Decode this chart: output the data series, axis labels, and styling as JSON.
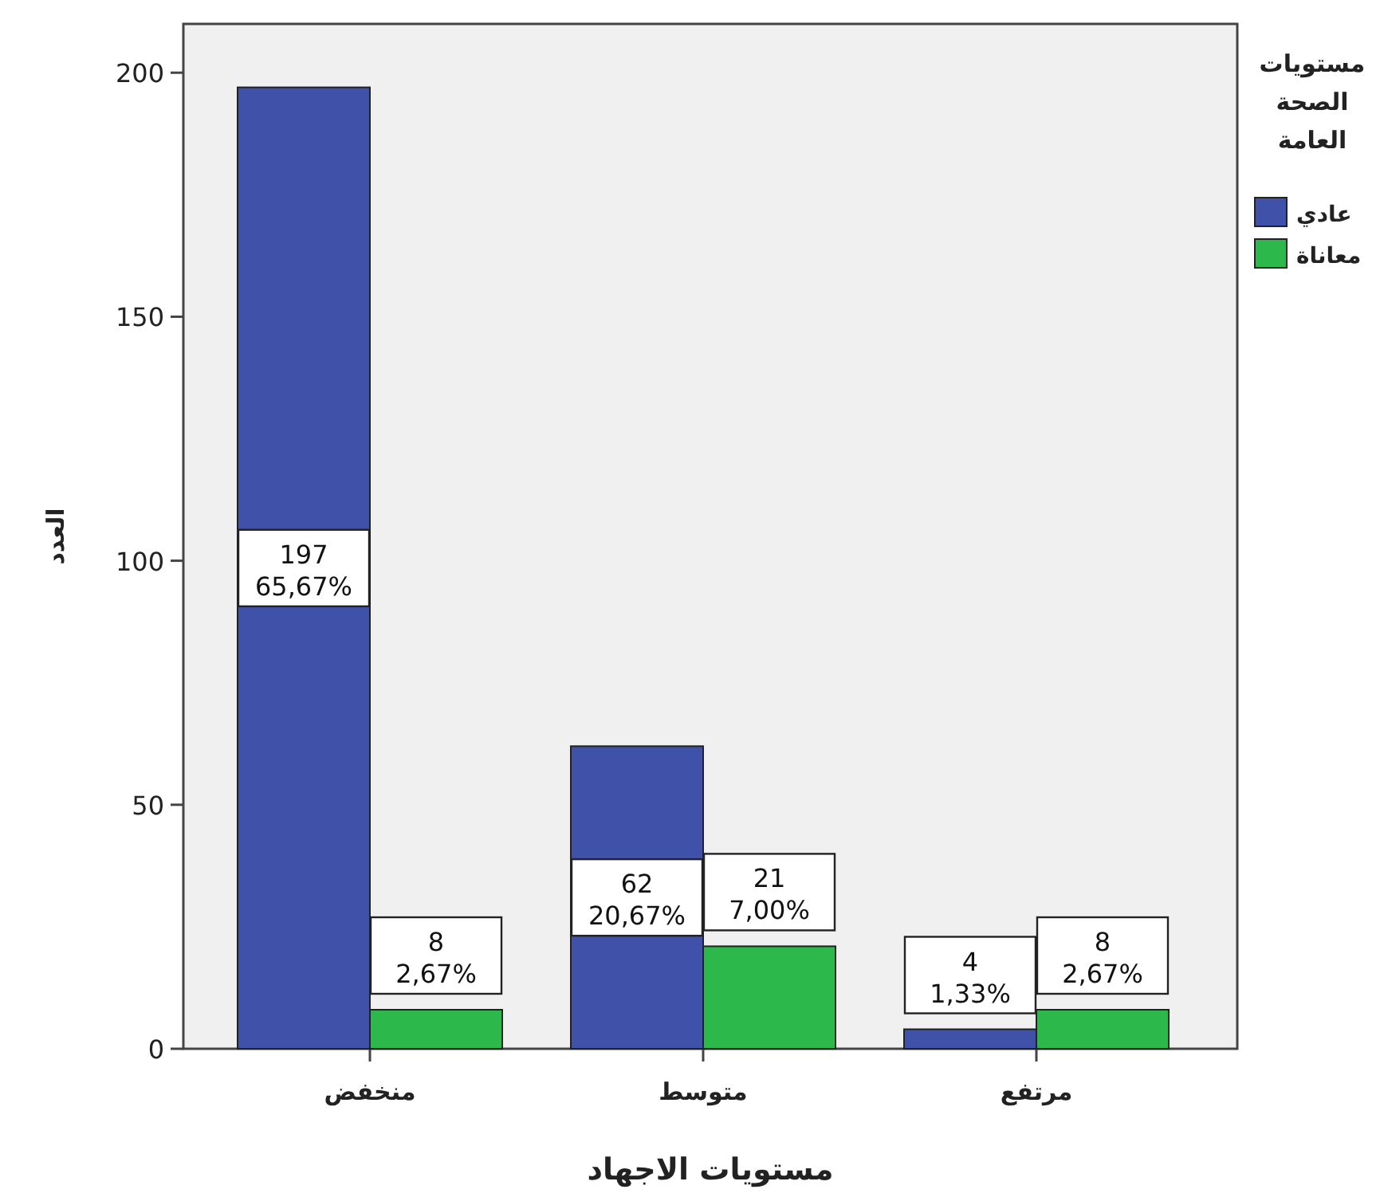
{
  "chart_data": {
    "type": "bar",
    "xlabel": "مستويات الاجهاد",
    "ylabel": "العدد",
    "legend_title": "مستويات الصحة العامة",
    "categories": [
      "منخفض",
      "متوسط",
      "مرتفع"
    ],
    "series": [
      {
        "name": "عادي",
        "color": "#3f51a8",
        "values": [
          197,
          62,
          4
        ],
        "value_labels": [
          "197\n65,67%",
          "62\n20,67%",
          "4\n1,33%"
        ]
      },
      {
        "name": "معاناة",
        "color": "#2db84c",
        "values": [
          8,
          21,
          8
        ],
        "value_labels": [
          "8\n2,67%",
          "21\n7,00%",
          "8\n2,67%"
        ]
      }
    ],
    "ylim": [
      0,
      210
    ],
    "yticks": [
      0,
      50,
      100,
      150,
      200
    ],
    "grid": false,
    "legend": "top right"
  }
}
